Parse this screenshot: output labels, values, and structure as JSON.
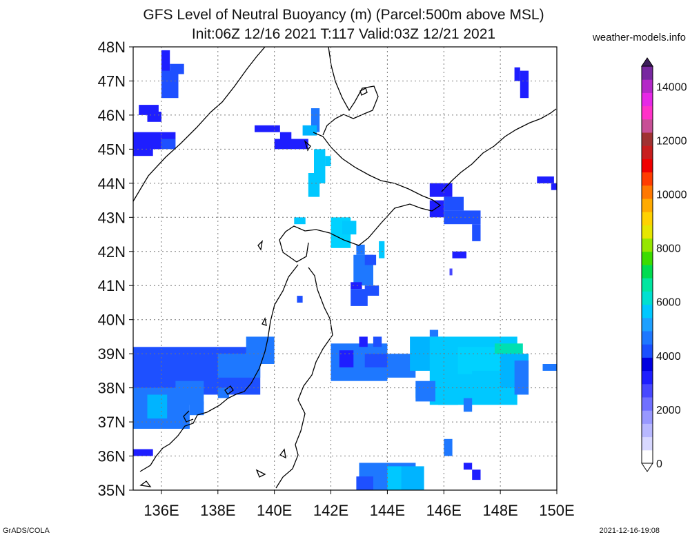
{
  "title_line1": "GFS Level of Neutral Buoyancy (m) (Parcel:500m above MSL)",
  "title_line2": "Init:06Z 12/16 2021 T:117 Valid:03Z 12/21 2021",
  "site": "weather-models.info",
  "footer_left": "GrADS/COLA",
  "footer_right": "2021-12-16-19:08",
  "map": {
    "lon_range": [
      135,
      150
    ],
    "lat_range": [
      35,
      48
    ],
    "lon_ticks": [
      "136E",
      "138E",
      "140E",
      "142E",
      "144E",
      "146E",
      "148E",
      "150E"
    ],
    "lat_ticks": [
      "35N",
      "36N",
      "37N",
      "38N",
      "39N",
      "40N",
      "41N",
      "42N",
      "43N",
      "44N",
      "45N",
      "46N",
      "47N",
      "48N"
    ],
    "gridlines": "dotted"
  },
  "colorbar": {
    "labels": [
      "0",
      "2000",
      "4000",
      "6000",
      "8000",
      "10000",
      "12000",
      "14000"
    ],
    "colors": [
      "#ffffff",
      "#d8d8ff",
      "#b8b8ff",
      "#9898ff",
      "#7070ff",
      "#4848ff",
      "#1e1eff",
      "#0000e0",
      "#1a50ff",
      "#1e78ff",
      "#1ea0ff",
      "#00c8ff",
      "#00e0d0",
      "#00e6a0",
      "#00dc50",
      "#3cdc00",
      "#96e600",
      "#e6e600",
      "#ffd200",
      "#ffaa00",
      "#ff7800",
      "#ff3c00",
      "#f00000",
      "#c81e1e",
      "#a03232",
      "#c85096",
      "#ff32c8",
      "#e628e6",
      "#b428c8",
      "#7828a0"
    ]
  }
}
